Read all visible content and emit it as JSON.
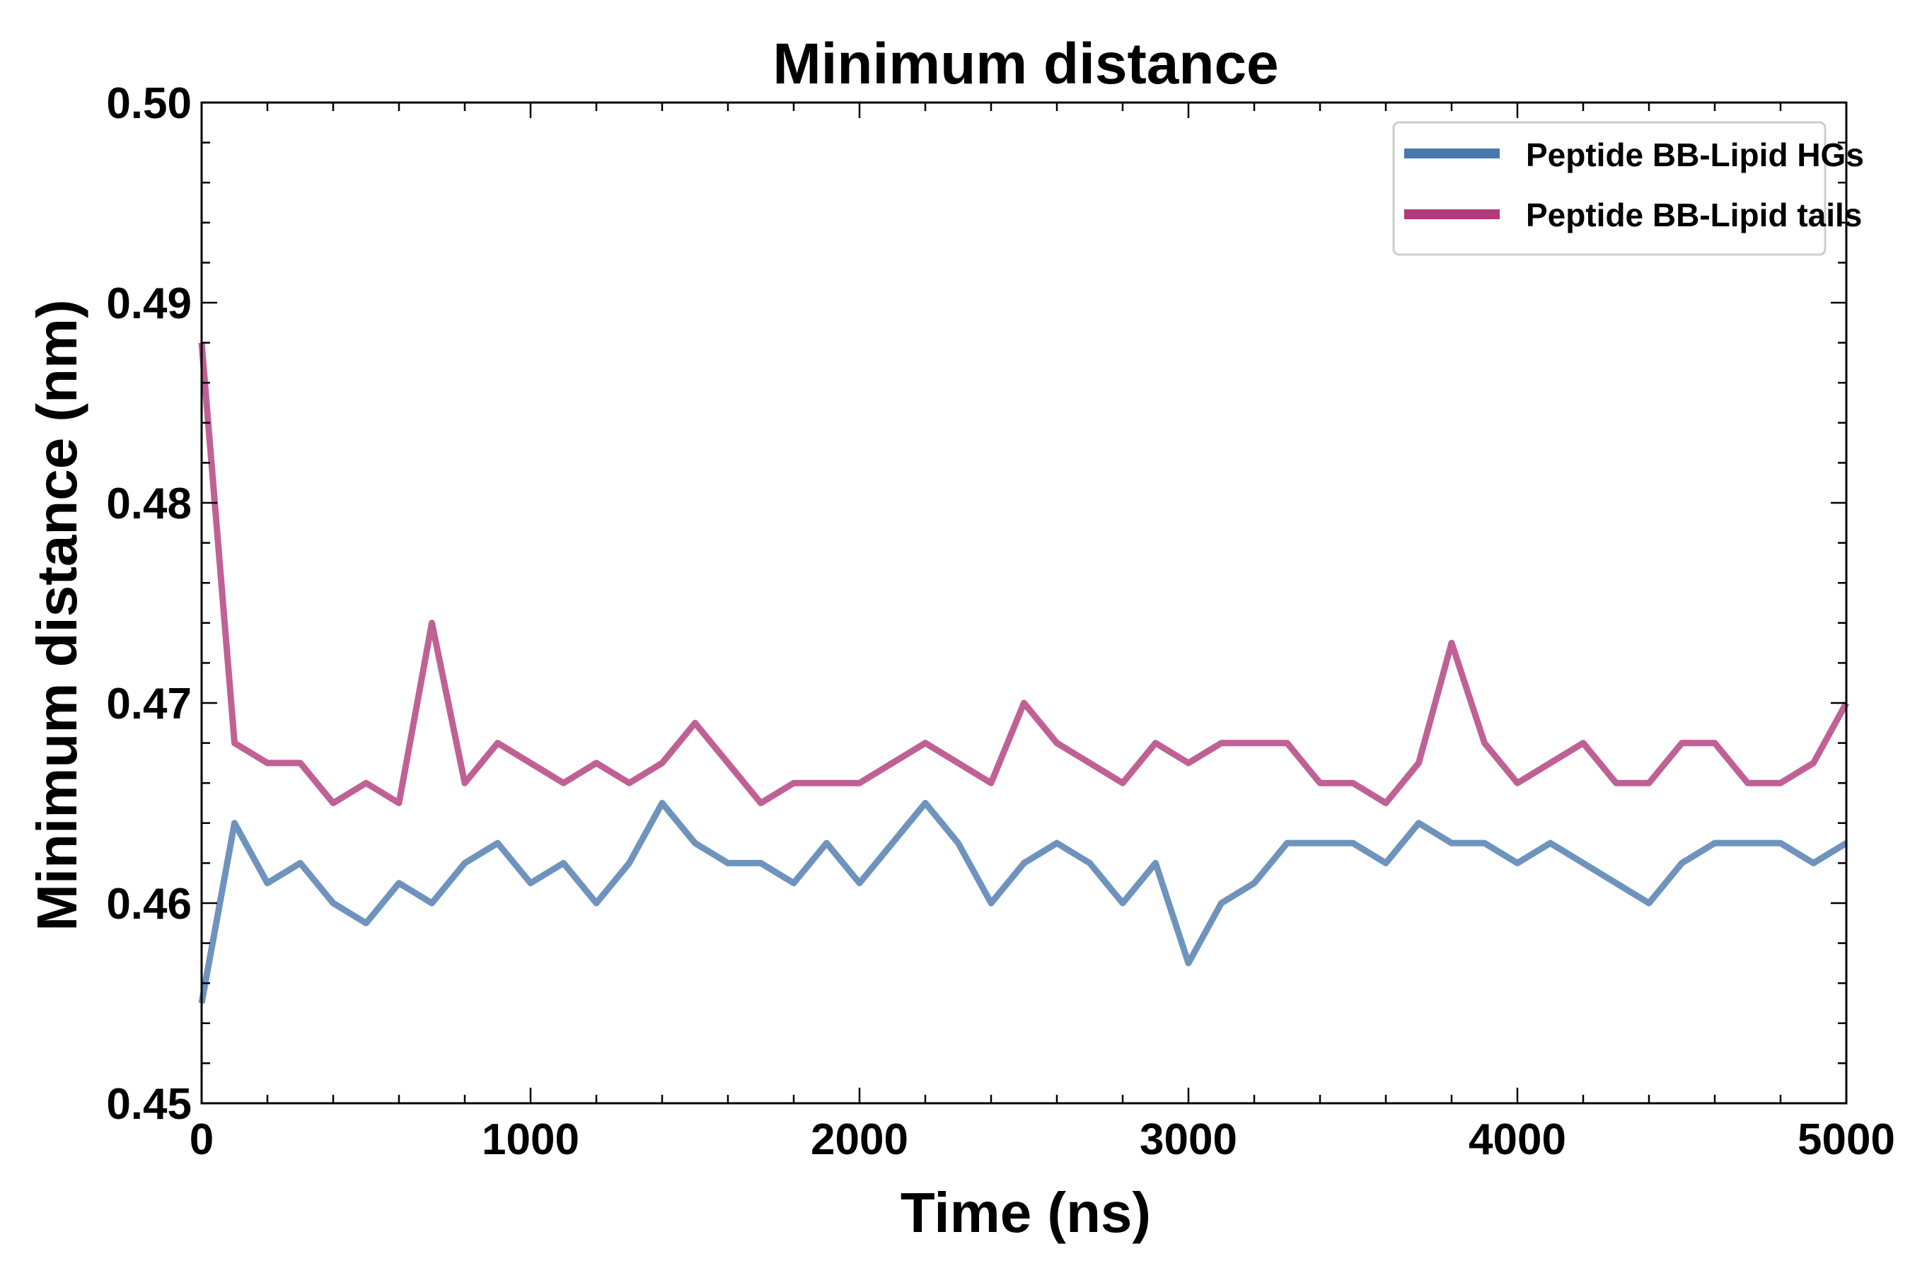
{
  "chart_data": {
    "type": "line",
    "title": "Minimum distance",
    "xlabel": "Time (ns)",
    "ylabel": "Minimum distance (nm)",
    "xlim": [
      0,
      5000
    ],
    "ylim": [
      0.45,
      0.5
    ],
    "xticks": [
      "0",
      "1000",
      "2000",
      "3000",
      "4000",
      "5000"
    ],
    "yticks": [
      "0.45",
      "0.46",
      "0.47",
      "0.48",
      "0.49",
      "0.50"
    ],
    "grid": false,
    "legend_position": "top-right",
    "x": [
      0,
      100,
      200,
      300,
      400,
      500,
      600,
      700,
      800,
      900,
      1000,
      1100,
      1200,
      1300,
      1400,
      1500,
      1600,
      1700,
      1800,
      1900,
      2000,
      2100,
      2200,
      2300,
      2400,
      2500,
      2600,
      2700,
      2800,
      2900,
      3000,
      3100,
      3200,
      3300,
      3400,
      3500,
      3600,
      3700,
      3800,
      3900,
      4000,
      4100,
      4200,
      4300,
      4400,
      4500,
      4600,
      4700,
      4800,
      4900,
      5000
    ],
    "series": [
      {
        "name": "Peptide BB-Lipid HGs",
        "color": "#4a78ad",
        "values": [
          0.455,
          0.464,
          0.461,
          0.462,
          0.46,
          0.459,
          0.461,
          0.46,
          0.462,
          0.463,
          0.461,
          0.462,
          0.46,
          0.462,
          0.465,
          0.463,
          0.462,
          0.462,
          0.461,
          0.463,
          0.461,
          0.463,
          0.465,
          0.463,
          0.46,
          0.462,
          0.463,
          0.462,
          0.46,
          0.462,
          0.457,
          0.46,
          0.461,
          0.463,
          0.463,
          0.463,
          0.462,
          0.464,
          0.463,
          0.463,
          0.462,
          0.463,
          0.462,
          0.461,
          0.46,
          0.462,
          0.463,
          0.463,
          0.463,
          0.462,
          0.463
        ]
      },
      {
        "name": "Peptide BB-Lipid tails",
        "color": "#b03a7c",
        "values": [
          0.488,
          0.468,
          0.467,
          0.467,
          0.465,
          0.466,
          0.465,
          0.474,
          0.466,
          0.468,
          0.467,
          0.466,
          0.467,
          0.466,
          0.467,
          0.469,
          0.467,
          0.465,
          0.466,
          0.466,
          0.466,
          0.467,
          0.468,
          0.467,
          0.466,
          0.47,
          0.468,
          0.467,
          0.466,
          0.468,
          0.467,
          0.468,
          0.468,
          0.468,
          0.466,
          0.466,
          0.465,
          0.467,
          0.473,
          0.468,
          0.466,
          0.467,
          0.468,
          0.466,
          0.466,
          0.468,
          0.468,
          0.466,
          0.466,
          0.467,
          0.47
        ]
      }
    ]
  }
}
